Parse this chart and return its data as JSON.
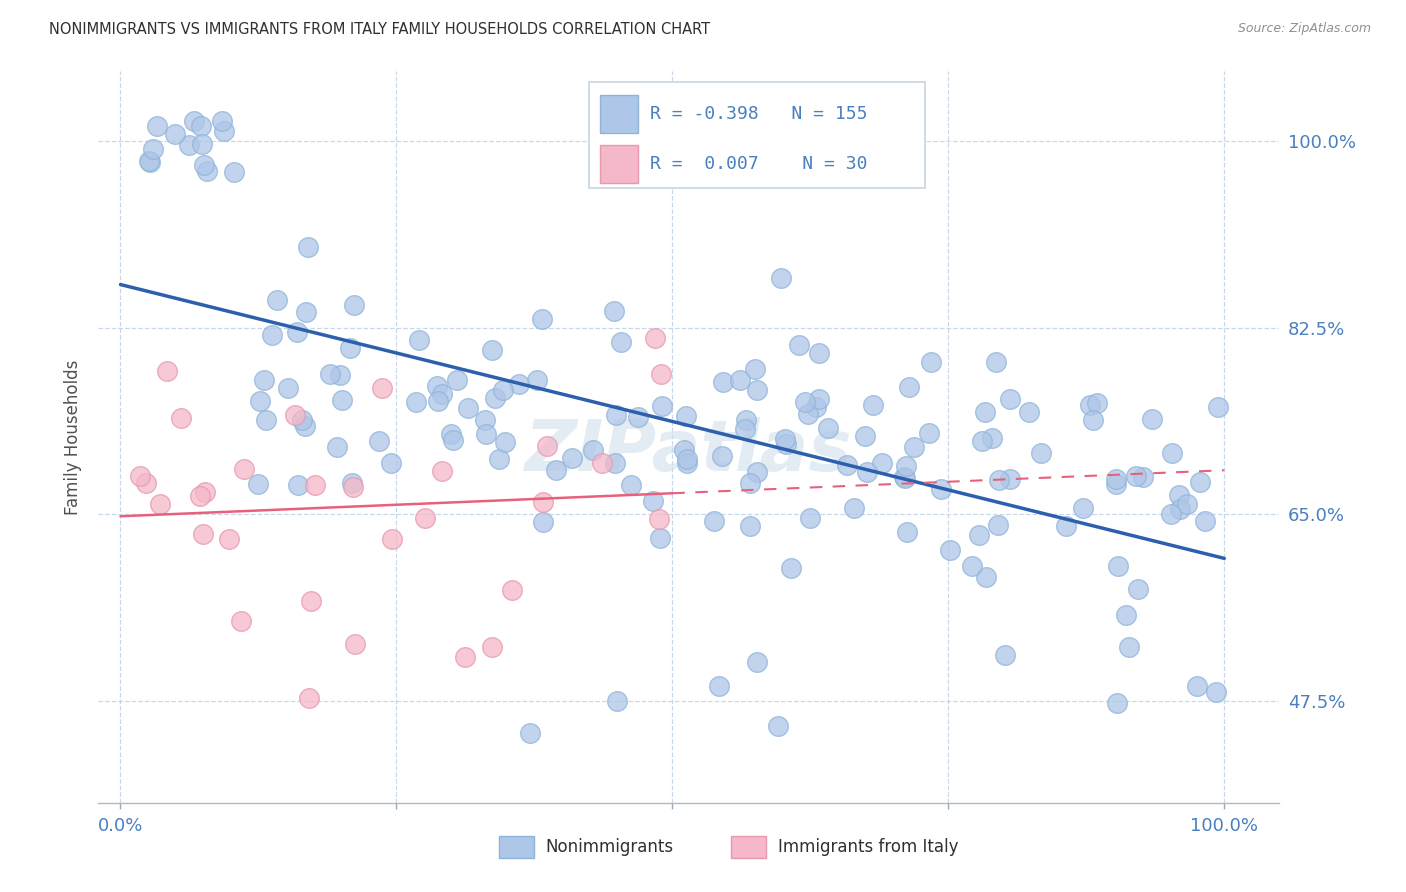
{
  "title": "NONIMMIGRANTS VS IMMIGRANTS FROM ITALY FAMILY HOUSEHOLDS CORRELATION CHART",
  "source": "Source: ZipAtlas.com",
  "ylabel": "Family Households",
  "legend_label1": "Nonimmigrants",
  "legend_label2": "Immigrants from Italy",
  "R1": -0.398,
  "N1": 155,
  "R2": 0.007,
  "N2": 30,
  "color1": "#aec6e8",
  "color2": "#f4b8c8",
  "trendline_color1": "#2c5fac",
  "trendline_color2": "#e8607a",
  "title_color": "#303030",
  "axis_label_color": "#4a7fc0",
  "source_color": "#909090",
  "ytick_labels": [
    "100.0%",
    "82.5%",
    "65.0%",
    "47.5%"
  ],
  "ytick_values": [
    1.0,
    0.825,
    0.65,
    0.475
  ],
  "xtick_labels": [
    "0.0%",
    "100.0%"
  ],
  "xtick_values": [
    0.0,
    1.0
  ],
  "xlim": [
    -0.02,
    1.05
  ],
  "ylim": [
    0.38,
    1.065
  ],
  "background_color": "#ffffff",
  "grid_color": "#c8d8ea"
}
